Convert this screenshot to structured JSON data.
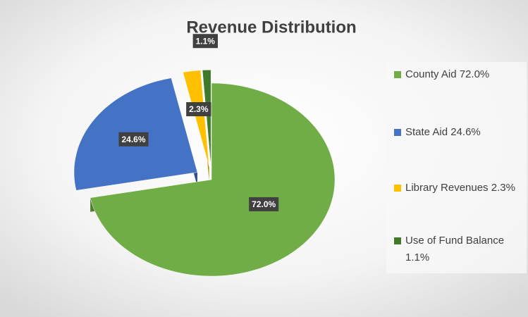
{
  "chart_data": {
    "type": "pie",
    "title": "Revenue Distribution",
    "categories": [
      "County Aid",
      "State Aid",
      "Library Revenues",
      "Use of Fund Balance"
    ],
    "values": [
      72.0,
      24.6,
      2.3,
      1.1
    ],
    "value_labels": [
      "72.0%",
      "24.6%",
      "2.3%",
      "1.1%"
    ],
    "colors": [
      "#70ad47",
      "#4472c4",
      "#ffc000",
      "#3f7a28"
    ],
    "exploded": [
      false,
      true,
      true,
      true
    ],
    "legend": "right"
  }
}
